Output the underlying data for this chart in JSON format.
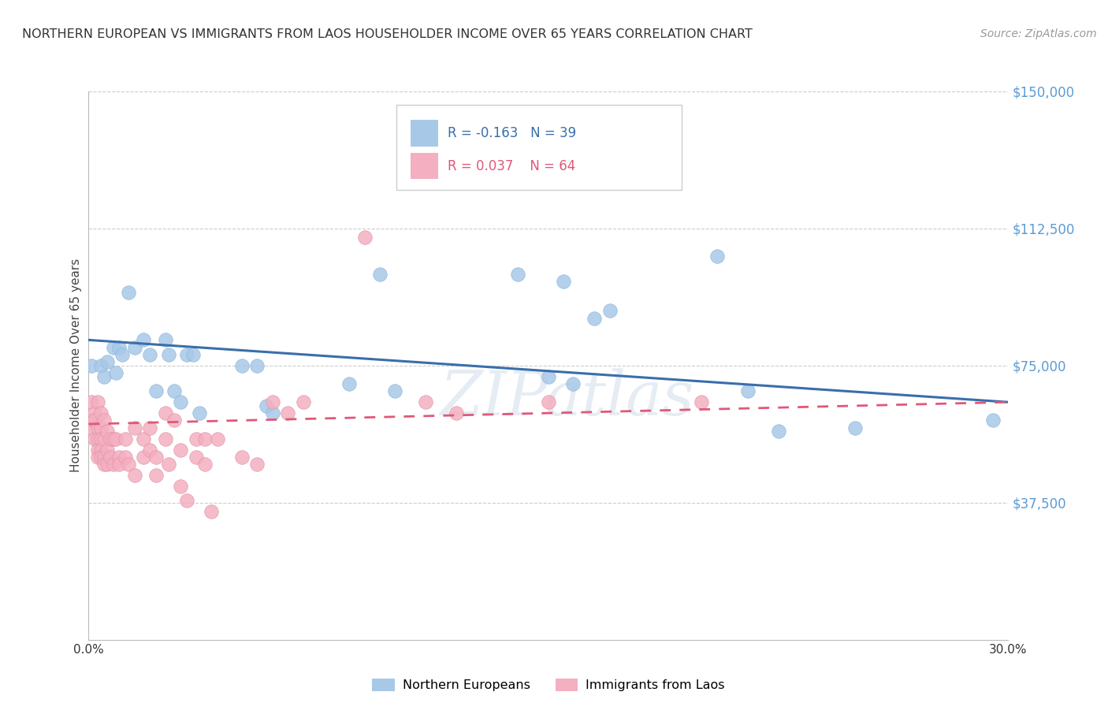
{
  "title": "NORTHERN EUROPEAN VS IMMIGRANTS FROM LAOS HOUSEHOLDER INCOME OVER 65 YEARS CORRELATION CHART",
  "source": "Source: ZipAtlas.com",
  "ylabel": "Householder Income Over 65 years",
  "xlim": [
    0,
    0.3
  ],
  "ylim": [
    0,
    150000
  ],
  "xticks": [
    0.0,
    0.05,
    0.1,
    0.15,
    0.2,
    0.25,
    0.3
  ],
  "xticklabels": [
    "0.0%",
    "",
    "",
    "",
    "",
    "",
    "30.0%"
  ],
  "yticks": [
    0,
    37500,
    75000,
    112500,
    150000
  ],
  "yticklabels": [
    "",
    "$37,500",
    "$75,000",
    "$112,500",
    "$150,000"
  ],
  "legend1_label": "Northern Europeans",
  "legend2_label": "Immigrants from Laos",
  "r1": -0.163,
  "n1": 39,
  "r2": 0.037,
  "n2": 64,
  "color_blue": "#a8c8e8",
  "color_pink": "#f4afc0",
  "color_blue_line": "#3a6eaa",
  "color_pink_line": "#e05878",
  "color_yaxis_labels": "#5b9bd5",
  "watermark": "ZIPatlas",
  "blue_points": [
    [
      0.001,
      75000
    ],
    [
      0.004,
      75000
    ],
    [
      0.005,
      72000
    ],
    [
      0.006,
      76000
    ],
    [
      0.008,
      80000
    ],
    [
      0.009,
      73000
    ],
    [
      0.01,
      80000
    ],
    [
      0.011,
      78000
    ],
    [
      0.013,
      95000
    ],
    [
      0.015,
      80000
    ],
    [
      0.018,
      82000
    ],
    [
      0.02,
      78000
    ],
    [
      0.022,
      68000
    ],
    [
      0.025,
      82000
    ],
    [
      0.026,
      78000
    ],
    [
      0.028,
      68000
    ],
    [
      0.03,
      65000
    ],
    [
      0.032,
      78000
    ],
    [
      0.034,
      78000
    ],
    [
      0.036,
      62000
    ],
    [
      0.05,
      75000
    ],
    [
      0.055,
      75000
    ],
    [
      0.058,
      64000
    ],
    [
      0.06,
      62000
    ],
    [
      0.085,
      70000
    ],
    [
      0.095,
      100000
    ],
    [
      0.1,
      68000
    ],
    [
      0.13,
      128000
    ],
    [
      0.14,
      100000
    ],
    [
      0.15,
      72000
    ],
    [
      0.155,
      98000
    ],
    [
      0.158,
      70000
    ],
    [
      0.165,
      88000
    ],
    [
      0.17,
      90000
    ],
    [
      0.205,
      105000
    ],
    [
      0.215,
      68000
    ],
    [
      0.225,
      57000
    ],
    [
      0.25,
      58000
    ],
    [
      0.295,
      60000
    ]
  ],
  "pink_points": [
    [
      0.001,
      65000
    ],
    [
      0.001,
      60000
    ],
    [
      0.001,
      58000
    ],
    [
      0.002,
      62000
    ],
    [
      0.002,
      60000
    ],
    [
      0.002,
      55000
    ],
    [
      0.003,
      65000
    ],
    [
      0.003,
      58000
    ],
    [
      0.003,
      55000
    ],
    [
      0.003,
      52000
    ],
    [
      0.003,
      50000
    ],
    [
      0.004,
      62000
    ],
    [
      0.004,
      58000
    ],
    [
      0.004,
      55000
    ],
    [
      0.004,
      52000
    ],
    [
      0.004,
      50000
    ],
    [
      0.005,
      60000
    ],
    [
      0.005,
      55000
    ],
    [
      0.005,
      50000
    ],
    [
      0.005,
      48000
    ],
    [
      0.006,
      57000
    ],
    [
      0.006,
      52000
    ],
    [
      0.006,
      48000
    ],
    [
      0.007,
      55000
    ],
    [
      0.007,
      50000
    ],
    [
      0.008,
      55000
    ],
    [
      0.008,
      48000
    ],
    [
      0.009,
      55000
    ],
    [
      0.01,
      50000
    ],
    [
      0.01,
      48000
    ],
    [
      0.012,
      55000
    ],
    [
      0.012,
      50000
    ],
    [
      0.013,
      48000
    ],
    [
      0.015,
      58000
    ],
    [
      0.015,
      45000
    ],
    [
      0.018,
      55000
    ],
    [
      0.018,
      50000
    ],
    [
      0.02,
      58000
    ],
    [
      0.02,
      52000
    ],
    [
      0.022,
      50000
    ],
    [
      0.022,
      45000
    ],
    [
      0.025,
      62000
    ],
    [
      0.025,
      55000
    ],
    [
      0.026,
      48000
    ],
    [
      0.028,
      60000
    ],
    [
      0.03,
      52000
    ],
    [
      0.03,
      42000
    ],
    [
      0.032,
      38000
    ],
    [
      0.035,
      55000
    ],
    [
      0.035,
      50000
    ],
    [
      0.038,
      55000
    ],
    [
      0.038,
      48000
    ],
    [
      0.04,
      35000
    ],
    [
      0.042,
      55000
    ],
    [
      0.05,
      50000
    ],
    [
      0.055,
      48000
    ],
    [
      0.06,
      65000
    ],
    [
      0.065,
      62000
    ],
    [
      0.07,
      65000
    ],
    [
      0.09,
      110000
    ],
    [
      0.11,
      65000
    ],
    [
      0.12,
      62000
    ],
    [
      0.15,
      65000
    ],
    [
      0.2,
      65000
    ]
  ]
}
